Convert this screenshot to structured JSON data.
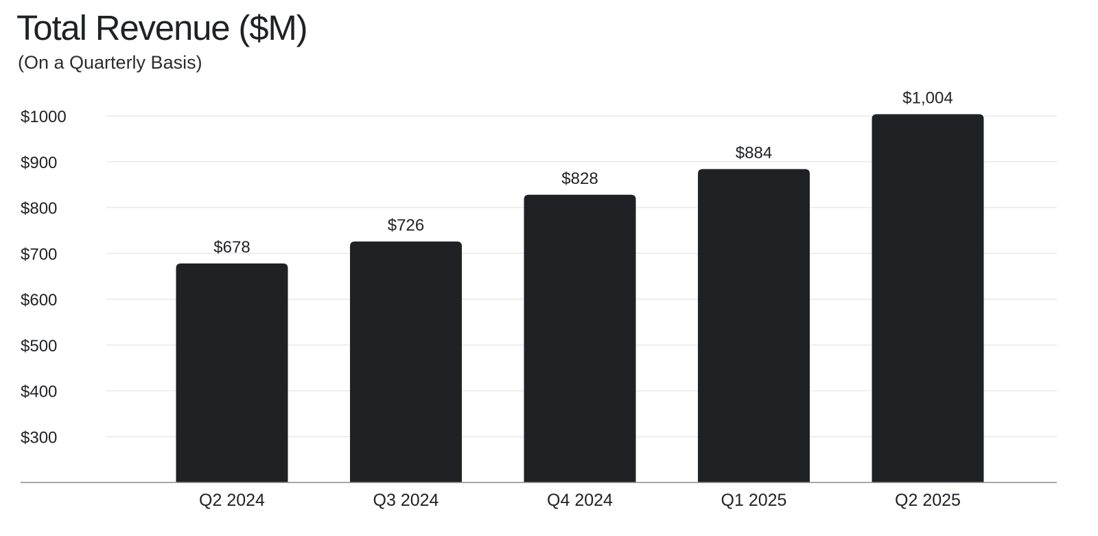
{
  "chart_data": {
    "type": "bar",
    "title": "Total Revenue ($M)",
    "subtitle": "(On a Quarterly Basis)",
    "categories": [
      "Q2 2024",
      "Q3 2024",
      "Q4 2024",
      "Q1 2025",
      "Q2 2025"
    ],
    "values": [
      678,
      726,
      828,
      884,
      1004
    ],
    "data_labels": [
      "$678",
      "$726",
      "$828",
      "$884",
      "$1,004"
    ],
    "xlabel": "",
    "ylabel": "",
    "ylim": [
      200,
      1000
    ],
    "yticks": [
      300,
      400,
      500,
      600,
      700,
      800,
      900,
      1000
    ],
    "ytick_labels": [
      "$300",
      "$400",
      "$500",
      "$600",
      "$700",
      "$800",
      "$900",
      "$1000"
    ],
    "grid": true,
    "legend": "none",
    "colors": {
      "bar": "#1f2124",
      "grid": "#e9e9e9",
      "axis": "#8a8a8a",
      "text": "#1f2124"
    }
  }
}
